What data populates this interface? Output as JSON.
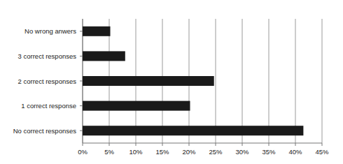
{
  "chart_data": {
    "type": "bar",
    "orientation": "horizontal",
    "categories": [
      "No wrong anwers",
      "3 correct responses",
      "2 correct responses",
      "1 correct response",
      "No correct responses"
    ],
    "values": [
      5.2,
      8,
      24.7,
      20.2,
      41.5
    ],
    "color": "#1a1a1a",
    "xlim": [
      0,
      45
    ],
    "xticks": [
      {
        "value": 0,
        "label": "0%"
      },
      {
        "value": 5,
        "label": "5%"
      },
      {
        "value": 10,
        "label": "10%"
      },
      {
        "value": 15,
        "label": "15%"
      },
      {
        "value": 20,
        "label": "20%"
      },
      {
        "value": 25,
        "label": "25%"
      },
      {
        "value": 30,
        "label": "30%"
      },
      {
        "value": 35,
        "label": "35%"
      },
      {
        "value": 40,
        "label": "40%"
      },
      {
        "value": 45,
        "label": "45%"
      }
    ],
    "grid": true
  }
}
